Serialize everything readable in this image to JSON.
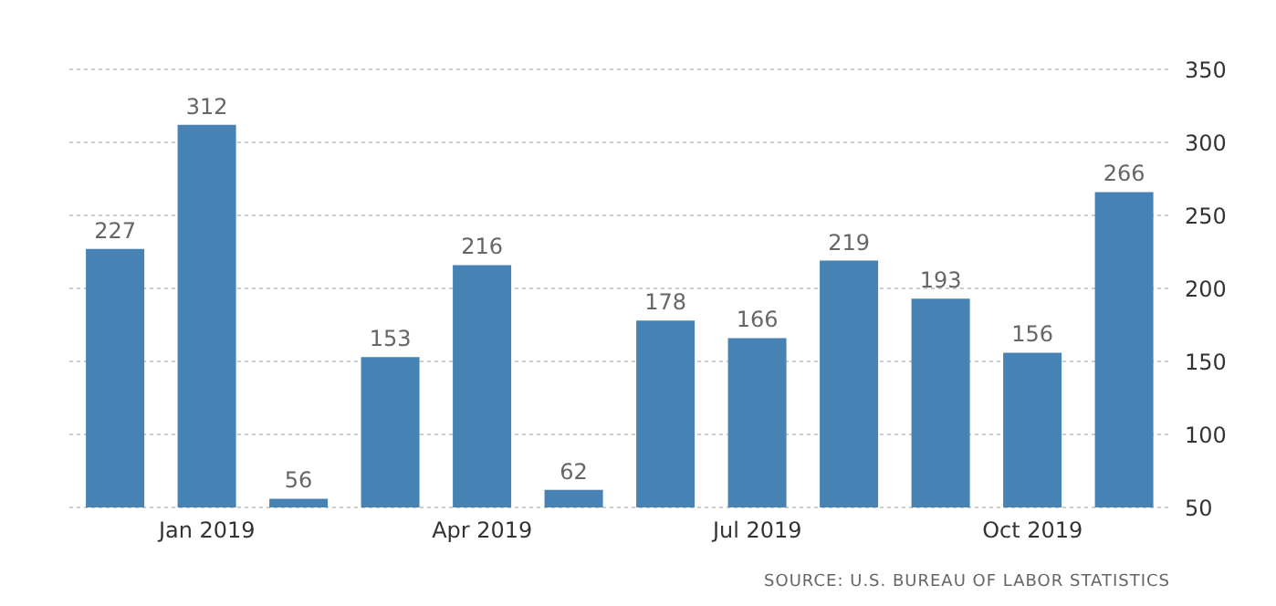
{
  "chart_data": {
    "type": "bar",
    "categories": [
      null,
      "Jan 2019",
      null,
      null,
      "Apr 2019",
      null,
      null,
      "Jul 2019",
      null,
      null,
      "Oct 2019",
      null
    ],
    "values": [
      227,
      312,
      56,
      153,
      216,
      62,
      178,
      166,
      219,
      193,
      156,
      266
    ],
    "color": "#4682b4",
    "ylim": [
      50,
      350
    ],
    "yticks": [
      50,
      100,
      150,
      200,
      250,
      300,
      350
    ],
    "grid": "y",
    "data_labels": true,
    "annotations": [
      "SOURCE: U.S. BUREAU OF LABOR STATISTICS"
    ]
  }
}
